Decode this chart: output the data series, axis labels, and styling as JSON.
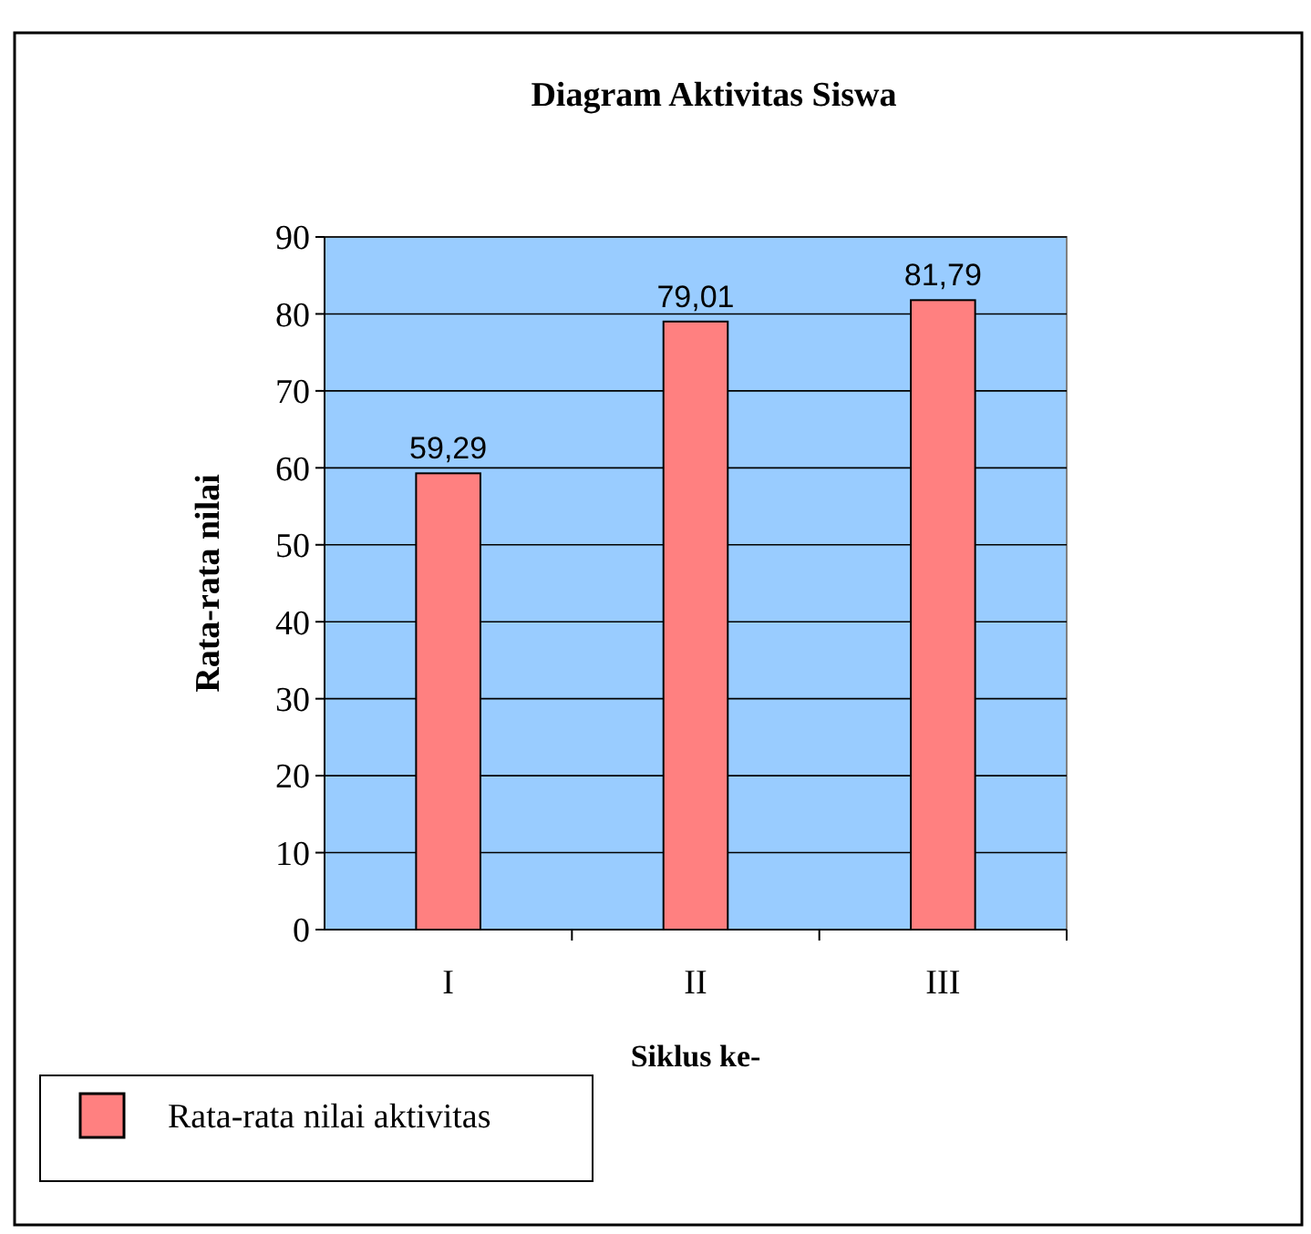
{
  "chart_data": {
    "type": "bar",
    "title": "Diagram Aktivitas Siswa",
    "xlabel": "Siklus ke-",
    "ylabel": "Rata-rata nilai",
    "categories": [
      "I",
      "II",
      "III"
    ],
    "series": [
      {
        "name": "Rata-rata nilai aktivitas",
        "color": "#ff8080",
        "values": [
          59.29,
          79.01,
          81.79
        ],
        "value_labels": [
          "59,29",
          "79,01",
          "81,79"
        ]
      }
    ],
    "ylim": [
      0,
      90
    ],
    "yticks": [
      0,
      10,
      20,
      30,
      40,
      50,
      60,
      70,
      80,
      90
    ],
    "grid": "y",
    "legend": "bottom left"
  }
}
